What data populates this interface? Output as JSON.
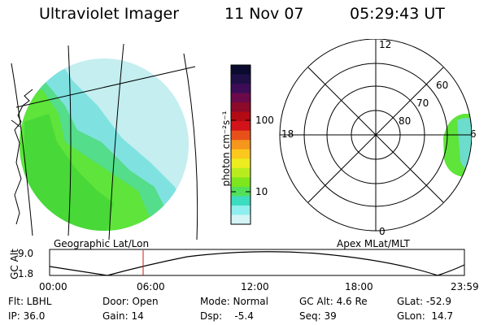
{
  "header": {
    "title": "Ultraviolet Imager",
    "date": "11 Nov 07",
    "time": "05:29:43 UT"
  },
  "colorbar": {
    "unit_text": "photon cm⁻²s⁻¹",
    "ticks": [
      "100",
      "10"
    ],
    "colors": [
      "#0b0b30",
      "#1e1046",
      "#3c0d56",
      "#6a0a4a",
      "#8c0a2a",
      "#b40a14",
      "#d2141a",
      "#e8501a",
      "#f6961c",
      "#fcc81e",
      "#ecec20",
      "#b8ec1e",
      "#7ee61c",
      "#52e05a",
      "#3cdcc0",
      "#90eeee",
      "#d4f4f6"
    ]
  },
  "left_panel": {
    "caption": "Geographic Lat/Lon",
    "land_colors": {
      "green": "#4ee036",
      "cyan": "#52dcd8",
      "light": "#bfeef0"
    }
  },
  "right_panel": {
    "caption": "Apex MLat/MLT",
    "mlt_labels": [
      "12",
      "18",
      "6",
      "0"
    ],
    "mlat_labels": [
      "60",
      "70",
      "80"
    ]
  },
  "timeline": {
    "y_label": "GC Alt",
    "y_ticks": [
      "9.0",
      "1.8"
    ],
    "x_ticks": [
      "00:00",
      "06:00",
      "12:00",
      "18:00",
      "23:59"
    ],
    "marker_color": "#d01818"
  },
  "status": {
    "flt": "Flt: LBHL",
    "ip": "IP: 36.0",
    "door": "Door: Open",
    "gain": "Gain: 14",
    "mode": "Mode: Normal",
    "dsp": "Dsp:    -5.4",
    "gcalt": "GC Alt: 4.6 Re",
    "seq": "Seq: 39",
    "glat": "GLat: -52.9",
    "glon": "GLon:  14.7"
  }
}
